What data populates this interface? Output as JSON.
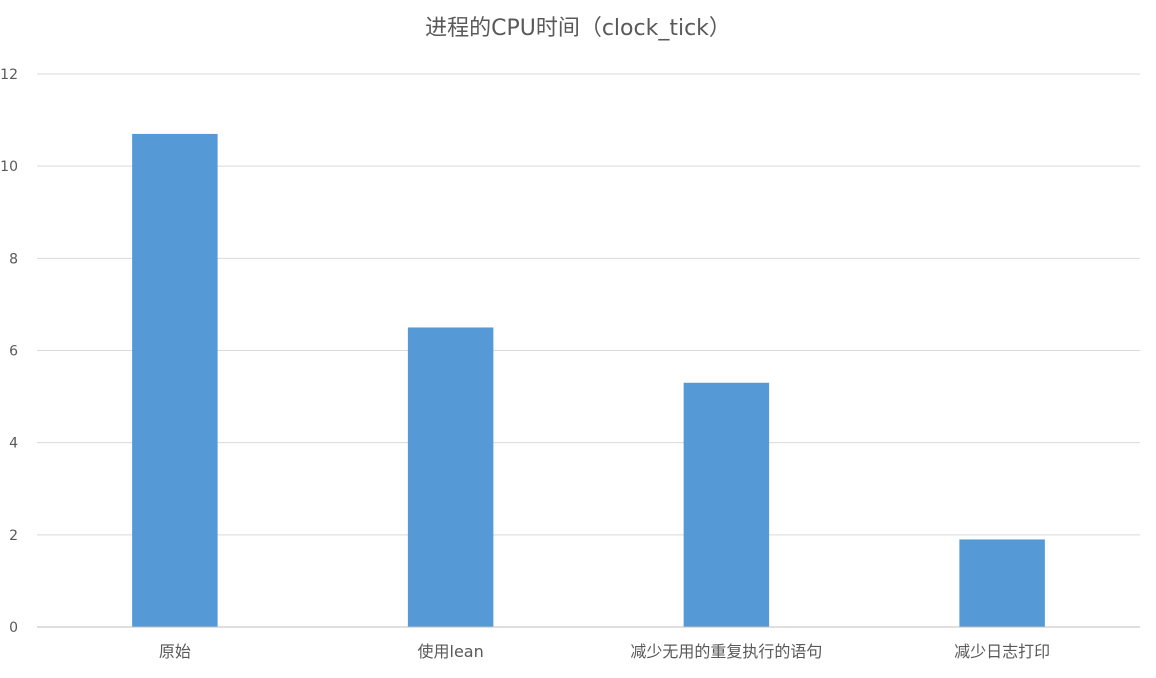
{
  "chart_data": {
    "type": "bar",
    "title": "进程的CPU时间（clock_tick）",
    "xlabel": "",
    "ylabel": "",
    "categories": [
      "原始",
      "使用lean",
      "减少无用的重复执行的语句",
      "减少日志打印"
    ],
    "values": [
      10.7,
      6.5,
      5.3,
      1.9
    ],
    "ylim": [
      0,
      12
    ],
    "yticks": [
      0,
      2,
      4,
      6,
      8,
      10,
      12
    ],
    "grid": true,
    "legend": "none",
    "colors": {
      "bar": "#559ad6",
      "grid": "#d9d9d9",
      "axis": "#bfbfbf",
      "tick_text": "#595959",
      "title": "#595959"
    }
  }
}
